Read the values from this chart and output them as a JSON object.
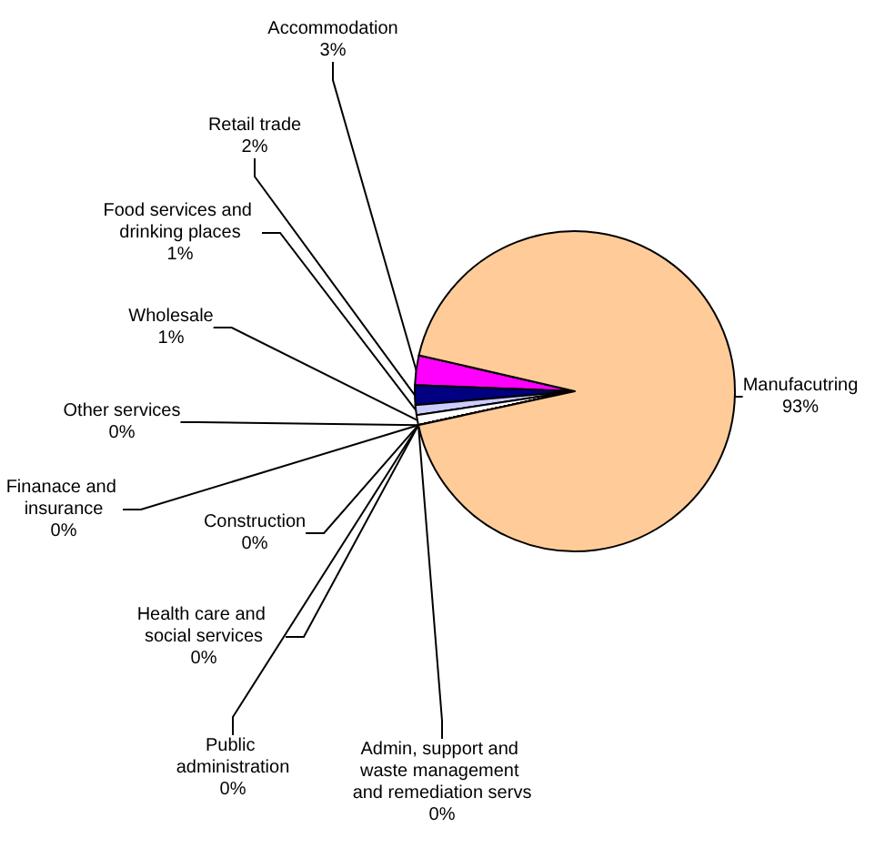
{
  "chart_data": {
    "type": "pie",
    "categories": [
      "Accommodation",
      "Retail trade",
      "Food services and drinking places",
      "Wholesale",
      "Other services",
      "Finanace and insurance",
      "Construction",
      "Health care and social services",
      "Public administration",
      "Admin, support and waste management and remediation servs",
      "Manufacutring"
    ],
    "values": [
      3,
      2,
      1,
      1,
      0,
      0,
      0,
      0,
      0,
      0,
      93
    ],
    "value_labels": [
      "3%",
      "2%",
      "1%",
      "1%",
      "0%",
      "0%",
      "0%",
      "0%",
      "0%",
      "0%",
      "93%"
    ],
    "colors": [
      "#ff00ff",
      "#000080",
      "#ccccff",
      "#ffffff",
      "#993366",
      "#ff8080",
      "#0066cc",
      "#ccffcc",
      "#800000",
      "#008080",
      "#ffcc99"
    ]
  }
}
